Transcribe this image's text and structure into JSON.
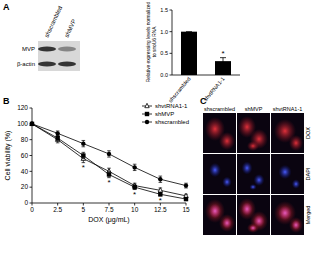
{
  "panel_labels": [
    "A",
    "B",
    "C"
  ],
  "blot": {
    "lanes": [
      "shscrambled",
      "shMVP"
    ],
    "bands": [
      {
        "label": "MVP"
      },
      {
        "label": "β-actin"
      }
    ]
  },
  "chart_data": [
    {
      "type": "bar",
      "y_label": "Relative expressing levels normalized to snoU6 RNA",
      "categories": [
        "shscrambled",
        "shvtRNA1-1"
      ],
      "values": [
        1,
        0.32
      ],
      "errors": [
        0,
        0.08
      ],
      "color": "#000000",
      "ylim": [
        0,
        1.5
      ],
      "yticks": [
        {
          "value": 0,
          "label": "0.0"
        },
        0.5,
        {
          "value": 1,
          "label": "1.0"
        },
        1.5
      ],
      "grid": false,
      "annotations": [
        {
          "category": "shvtRNA1-1",
          "text": "*"
        }
      ]
    },
    {
      "type": "line",
      "x_label": "DOX (μg/mL)",
      "y_label": "Cell viability (%)",
      "x": [
        0,
        2.5,
        5,
        7.5,
        10,
        12.5,
        15
      ],
      "series": [
        {
          "name": "shvtRNA1-1",
          "color": "#000000",
          "marker": "triangle",
          "line_style": "solid",
          "values": [
            100,
            80,
            56,
            40,
            22,
            16,
            9
          ],
          "errors": [
            0,
            4,
            5,
            4,
            3,
            3,
            2
          ]
        },
        {
          "name": "shMVP",
          "color": "#000000",
          "marker": "square",
          "line_style": "solid",
          "values": [
            100,
            82,
            60,
            36,
            20,
            11,
            5
          ],
          "errors": [
            0,
            3,
            4,
            4,
            3,
            2,
            2
          ]
        },
        {
          "name": "shscrambled",
          "color": "#000000",
          "marker": "circle",
          "line_style": "solid",
          "values": [
            100,
            88,
            75,
            62,
            45,
            30,
            22
          ],
          "errors": [
            0,
            3,
            4,
            4,
            4,
            4,
            3
          ]
        }
      ],
      "xlim": [
        0,
        15
      ],
      "xticks": [
        0,
        2.5,
        5,
        7.5,
        10,
        12.5,
        15
      ],
      "ylim": [
        0,
        120
      ],
      "yticks": [
        0,
        20,
        40,
        60,
        80,
        100,
        120
      ],
      "grid": false,
      "legend": "upper right",
      "annotations": [
        {
          "x": 5,
          "text": "*"
        },
        {
          "x": 7.5,
          "text": "*"
        },
        {
          "x": 10,
          "text": "*"
        },
        {
          "x": 12.5,
          "text": "*"
        }
      ]
    }
  ],
  "micrographs": {
    "columns": [
      "shscrambled",
      "shMVP",
      "shvtRNA1-1"
    ],
    "rows": [
      "DOX",
      "DAPI",
      "Merged"
    ]
  }
}
